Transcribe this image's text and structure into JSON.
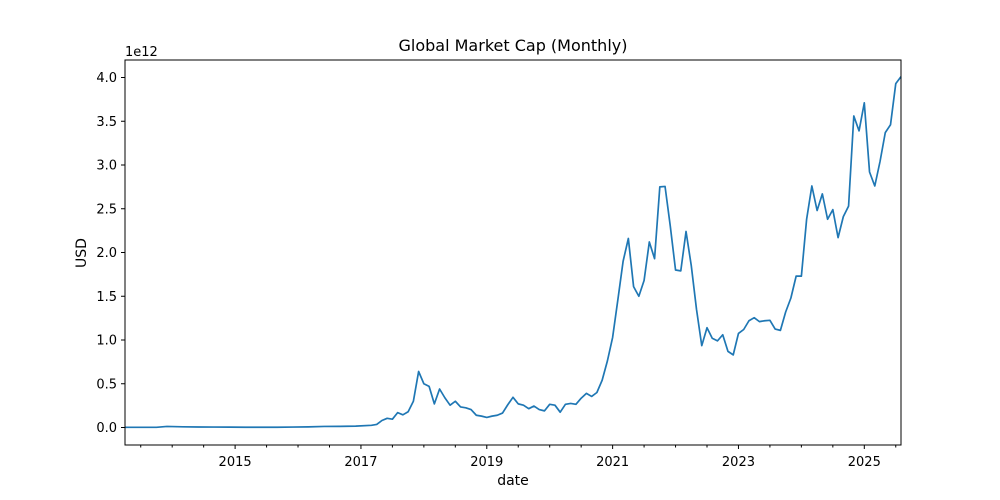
{
  "chart_data": {
    "type": "line",
    "title": "Global Market Cap (Monthly)",
    "xlabel": "date",
    "ylabel": "USD",
    "y_offset_label": "1e12",
    "y_scale": 1000000000000.0,
    "xlim": [
      "2013-04",
      "2025-08"
    ],
    "ylim": [
      -0.2,
      4.2
    ],
    "yticks": [
      0.0,
      0.5,
      1.0,
      1.5,
      2.0,
      2.5,
      3.0,
      3.5,
      4.0
    ],
    "ytick_labels": [
      "0.0",
      "0.5",
      "1.0",
      "1.5",
      "2.0",
      "2.5",
      "3.0",
      "3.5",
      "4.0"
    ],
    "xticks": [
      "2015-01",
      "2017-01",
      "2019-01",
      "2021-01",
      "2023-01",
      "2025-01"
    ],
    "xtick_labels": [
      "2015",
      "2017",
      "2019",
      "2021",
      "2023",
      "2025"
    ],
    "grid": false,
    "series": [
      {
        "color": "#1f77b4",
        "points": [
          [
            "2013-04",
            0.002
          ],
          [
            "2013-07",
            0.002
          ],
          [
            "2013-10",
            0.002
          ],
          [
            "2013-12",
            0.012
          ],
          [
            "2014-03",
            0.008
          ],
          [
            "2014-06",
            0.006
          ],
          [
            "2014-09",
            0.005
          ],
          [
            "2014-12",
            0.004
          ],
          [
            "2015-03",
            0.003
          ],
          [
            "2015-06",
            0.003
          ],
          [
            "2015-09",
            0.003
          ],
          [
            "2015-12",
            0.005
          ],
          [
            "2016-03",
            0.007
          ],
          [
            "2016-06",
            0.012
          ],
          [
            "2016-09",
            0.013
          ],
          [
            "2016-12",
            0.016
          ],
          [
            "2017-03",
            0.025
          ],
          [
            "2017-04",
            0.035
          ],
          [
            "2017-05",
            0.08
          ],
          [
            "2017-06",
            0.105
          ],
          [
            "2017-07",
            0.095
          ],
          [
            "2017-08",
            0.17
          ],
          [
            "2017-09",
            0.145
          ],
          [
            "2017-10",
            0.18
          ],
          [
            "2017-11",
            0.3
          ],
          [
            "2017-12",
            0.64
          ],
          [
            "2018-01",
            0.5
          ],
          [
            "2018-02",
            0.47
          ],
          [
            "2018-03",
            0.27
          ],
          [
            "2018-04",
            0.44
          ],
          [
            "2018-05",
            0.34
          ],
          [
            "2018-06",
            0.255
          ],
          [
            "2018-07",
            0.3
          ],
          [
            "2018-08",
            0.235
          ],
          [
            "2018-09",
            0.225
          ],
          [
            "2018-10",
            0.205
          ],
          [
            "2018-11",
            0.14
          ],
          [
            "2018-12",
            0.13
          ],
          [
            "2019-01",
            0.115
          ],
          [
            "2019-02",
            0.13
          ],
          [
            "2019-03",
            0.14
          ],
          [
            "2019-04",
            0.165
          ],
          [
            "2019-05",
            0.26
          ],
          [
            "2019-06",
            0.345
          ],
          [
            "2019-07",
            0.27
          ],
          [
            "2019-08",
            0.255
          ],
          [
            "2019-09",
            0.215
          ],
          [
            "2019-10",
            0.245
          ],
          [
            "2019-11",
            0.205
          ],
          [
            "2019-12",
            0.19
          ],
          [
            "2020-01",
            0.265
          ],
          [
            "2020-02",
            0.255
          ],
          [
            "2020-03",
            0.175
          ],
          [
            "2020-04",
            0.265
          ],
          [
            "2020-05",
            0.275
          ],
          [
            "2020-06",
            0.265
          ],
          [
            "2020-07",
            0.335
          ],
          [
            "2020-08",
            0.39
          ],
          [
            "2020-09",
            0.355
          ],
          [
            "2020-10",
            0.4
          ],
          [
            "2020-11",
            0.54
          ],
          [
            "2020-12",
            0.76
          ],
          [
            "2021-01",
            1.03
          ],
          [
            "2021-02",
            1.46
          ],
          [
            "2021-03",
            1.9
          ],
          [
            "2021-04",
            2.16
          ],
          [
            "2021-05",
            1.61
          ],
          [
            "2021-06",
            1.5
          ],
          [
            "2021-07",
            1.68
          ],
          [
            "2021-08",
            2.12
          ],
          [
            "2021-09",
            1.93
          ],
          [
            "2021-10",
            2.75
          ],
          [
            "2021-11",
            2.755
          ],
          [
            "2021-12",
            2.3
          ],
          [
            "2022-01",
            1.8
          ],
          [
            "2022-02",
            1.79
          ],
          [
            "2022-03",
            2.24
          ],
          [
            "2022-04",
            1.85
          ],
          [
            "2022-05",
            1.35
          ],
          [
            "2022-06",
            0.935
          ],
          [
            "2022-07",
            1.14
          ],
          [
            "2022-08",
            1.02
          ],
          [
            "2022-09",
            0.99
          ],
          [
            "2022-10",
            1.06
          ],
          [
            "2022-11",
            0.87
          ],
          [
            "2022-12",
            0.83
          ],
          [
            "2023-01",
            1.075
          ],
          [
            "2023-02",
            1.12
          ],
          [
            "2023-03",
            1.22
          ],
          [
            "2023-04",
            1.255
          ],
          [
            "2023-05",
            1.21
          ],
          [
            "2023-06",
            1.22
          ],
          [
            "2023-07",
            1.225
          ],
          [
            "2023-08",
            1.125
          ],
          [
            "2023-09",
            1.11
          ],
          [
            "2023-10",
            1.32
          ],
          [
            "2023-11",
            1.48
          ],
          [
            "2023-12",
            1.73
          ],
          [
            "2024-01",
            1.73
          ],
          [
            "2024-02",
            2.38
          ],
          [
            "2024-03",
            2.76
          ],
          [
            "2024-04",
            2.48
          ],
          [
            "2024-05",
            2.67
          ],
          [
            "2024-06",
            2.38
          ],
          [
            "2024-07",
            2.49
          ],
          [
            "2024-08",
            2.17
          ],
          [
            "2024-09",
            2.41
          ],
          [
            "2024-10",
            2.53
          ],
          [
            "2024-11",
            3.56
          ],
          [
            "2024-12",
            3.39
          ],
          [
            "2025-01",
            3.71
          ],
          [
            "2025-02",
            2.92
          ],
          [
            "2025-03",
            2.76
          ],
          [
            "2025-04",
            3.04
          ],
          [
            "2025-05",
            3.37
          ],
          [
            "2025-06",
            3.46
          ],
          [
            "2025-07",
            3.93
          ],
          [
            "2025-08",
            4.01
          ]
        ]
      }
    ]
  }
}
